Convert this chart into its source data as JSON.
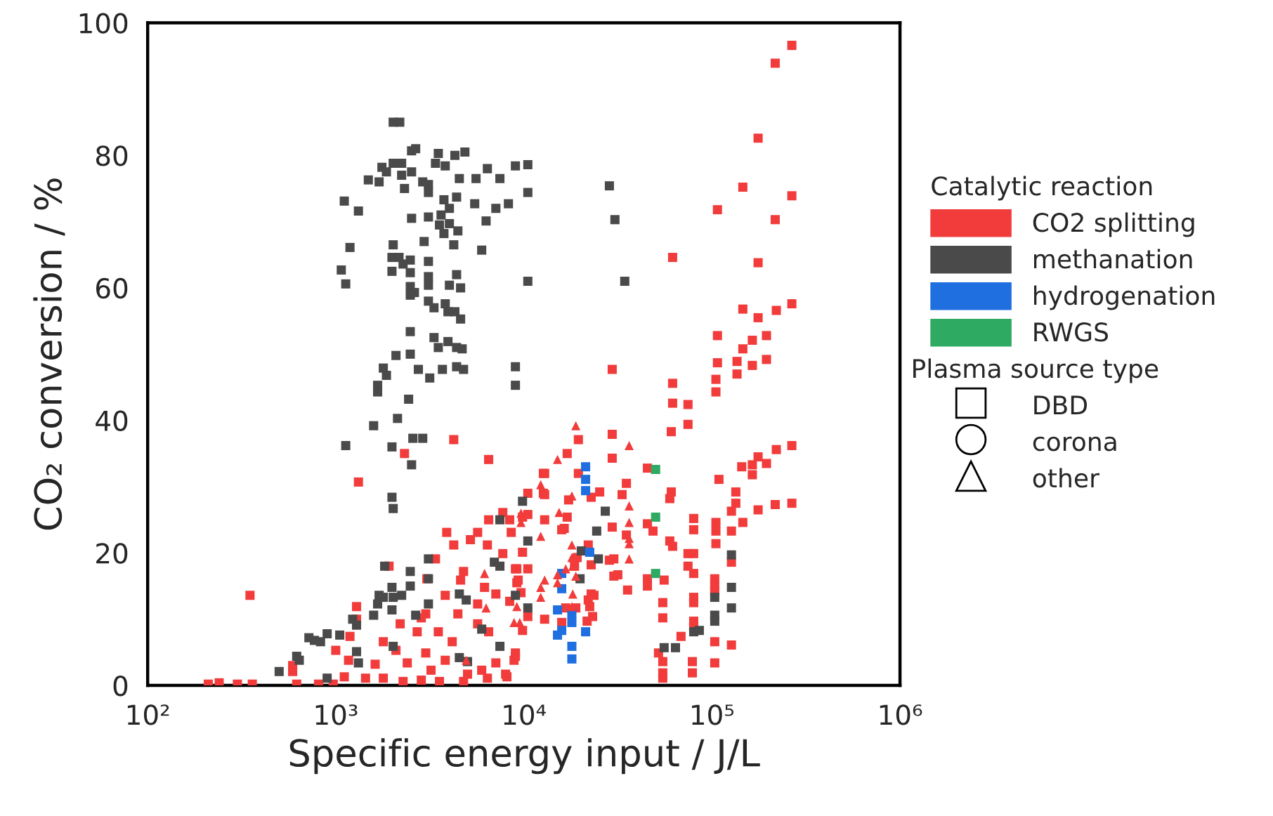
{
  "chart_data": {
    "type": "scatter",
    "xlabel": "Specific energy input / J/L",
    "ylabel": "CO₂ conversion / %",
    "legend_title": "Catalytic reaction",
    "legend": "right",
    "log": "x",
    "grid": false,
    "xlim": [
      100,
      1000000
    ],
    "xticks": [
      {
        "value": 100,
        "label": "10²"
      },
      {
        "value": 1000,
        "label": "10³"
      },
      {
        "value": 10000,
        "label": "10⁴"
      },
      {
        "value": 100000,
        "label": "10⁵"
      },
      {
        "value": 1000000,
        "label": "10⁶"
      }
    ],
    "ylim": [
      0,
      100
    ],
    "yticks": [
      0,
      20,
      40,
      60,
      80,
      100
    ],
    "annotations": [
      "Plasma source type",
      "DBD",
      "corona",
      "other"
    ],
    "series": [
      {
        "name": "CO2 splitting",
        "color": "#f23c3c",
        "marker": "square",
        "x": [
          266000,
          217000,
          176000,
          146000,
          266000,
          107000,
          217000,
          61800,
          176000,
          146000,
          176000,
          220000,
          266000,
          107000,
          164000,
          195000,
          146000,
          107000,
          136000,
          195000,
          29500,
          164000,
          105000,
          105000,
          136000,
          61800,
          61800,
          74600,
          74600,
          60800,
          29500,
          29500,
          19500,
          17000,
          12900,
          12900,
          10500,
          19500,
          22800,
          25300,
          17300,
          33300,
          35100,
          45400,
          60800,
          59700,
          109000,
          134000,
          134000,
          144000,
          164000,
          195000,
          164000,
          176000,
          220000,
          266000,
          217000,
          266000,
          176000,
          127000,
          146000,
          105000,
          105000,
          127000,
          105000,
          127000,
          80000,
          80000,
          74600,
          80000,
          74600,
          80000,
          59700,
          61800,
          45400,
          48600,
          29500,
          35100,
          45400,
          45400,
          55700,
          35600,
          30100,
          28500,
          31600,
          30100,
          22800,
          22000,
          22800,
          23600,
          22000,
          22400,
          21700,
          23200,
          54800,
          54800,
          80000,
          80000,
          80000,
          80000,
          103500,
          103500,
          103500,
          103500,
          103500,
          127000,
          78700,
          78700,
          68500,
          52000,
          54800,
          54800,
          54800,
          19200,
          18600,
          18900,
          16700,
          15900,
          12900,
          17000,
          16400,
          12900,
          10500,
          9840,
          8410,
          8570,
          9840,
          10500,
          9180,
          9330,
          9660,
          8410,
          10500,
          9840,
          9020,
          8870,
          8130,
          4240,
          2320,
          6500,
          1320,
          350,
          1920,
          1290,
          1290,
          3890,
          5680,
          6500,
          7730,
          12700,
          12700,
          15900,
          3390,
          4240,
          5200,
          6400,
          7730,
          4780,
          3050,
          4610,
          6180,
          9020,
          9180,
          7100,
          3820,
          2200,
          2850,
          3010,
          4460,
          5680,
          1190,
          1000,
          1170,
          590,
          590,
          1790,
          2090,
          2710,
          3510,
          4160,
          5680,
          6500,
          9020,
          1620,
          2400,
          3010,
          3210,
          3820,
          5020,
          5970,
          7100,
          8000,
          210,
          240,
          300,
          360,
          620,
          810,
          970,
          1110,
          1440,
          1790,
          2280,
          2850,
          3560,
          4780,
          6400
        ],
        "values": [
          96.6,
          93.9,
          82.6,
          75.2,
          73.9,
          71.8,
          70.3,
          64.6,
          63.8,
          56.8,
          55.5,
          56.6,
          57.6,
          52.8,
          52.1,
          52.8,
          50.8,
          48.7,
          48.9,
          49.2,
          47.7,
          48.3,
          46.2,
          44.3,
          47,
          45.6,
          42.6,
          42.4,
          39.4,
          38.3,
          37.9,
          34.3,
          37.1,
          35,
          32,
          28.8,
          29,
          32,
          28.4,
          29.2,
          28,
          28.8,
          30.5,
          32.8,
          29.2,
          28.2,
          31.1,
          29.2,
          27.5,
          33,
          33.3,
          33.5,
          31.8,
          34.5,
          35.6,
          36.2,
          27.3,
          27.5,
          26.5,
          26.3,
          24.6,
          24.6,
          23.3,
          23.3,
          21.4,
          18.6,
          25.2,
          23.5,
          19.9,
          19.9,
          18,
          16.9,
          21.8,
          21,
          24.4,
          23.3,
          23.9,
          22.7,
          16.1,
          15,
          15.9,
          14.4,
          19.1,
          18.9,
          16.7,
          16.5,
          18.2,
          21.2,
          13.8,
          13.6,
          12.9,
          11.9,
          9.7,
          10.4,
          12.5,
          10.2,
          13.3,
          12.5,
          9.7,
          8.9,
          16.1,
          15,
          14.2,
          6.6,
          3.4,
          6.1,
          3.6,
          1.9,
          7.4,
          4.9,
          3.6,
          1.9,
          1.1,
          19.3,
          18,
          11.7,
          11.7,
          9.5,
          10,
          25.4,
          23.7,
          25,
          25.8,
          25.4,
          25,
          23.1,
          20.1,
          17.6,
          17.6,
          15.9,
          14,
          12.7,
          10.4,
          8.3,
          4.9,
          3.8,
          1.3,
          37.1,
          35,
          34.1,
          30.7,
          13.6,
          18,
          11.9,
          10,
          23.1,
          23.1,
          25,
          26.1,
          32,
          29,
          23.5,
          19.1,
          21.2,
          22,
          21.2,
          19.9,
          17.2,
          16.1,
          15.9,
          14.8,
          17.6,
          15.5,
          13.8,
          13.6,
          9.3,
          10.2,
          10.8,
          10.8,
          12.3,
          7.4,
          5.3,
          3.8,
          3,
          2.1,
          6.6,
          5.3,
          8.1,
          8.1,
          6.6,
          9.3,
          8.1,
          4.4,
          3.2,
          3.4,
          4.9,
          2.3,
          3.8,
          1.7,
          2.3,
          3.4,
          1.7,
          0.2,
          0.4,
          0.2,
          0.2,
          0.2,
          0.2,
          0.2,
          1.3,
          1.1,
          1.1,
          0.6,
          0.8,
          0.6,
          0.6,
          1.1
        ]
      },
      {
        "name": "methanation",
        "color": "#4a4a4a",
        "marker": "square",
        "x": [
          2020,
          2190,
          2530,
          2660,
          3510,
          4300,
          4860,
          3390,
          3820,
          2020,
          2240,
          1760,
          1860,
          2530,
          2240,
          1490,
          1700,
          2900,
          3110,
          4540,
          5570,
          6400,
          7460,
          9020,
          10500,
          10500,
          2320,
          3110,
          1110,
          1320,
          3760,
          4390,
          4020,
          5480,
          7100,
          8280,
          6300,
          2530,
          3110,
          3630,
          3560,
          4020,
          3760,
          4460,
          1190,
          2950,
          4240,
          5970,
          2020,
          1990,
          2170,
          2280,
          2490,
          3110,
          1070,
          1130,
          1990,
          2490,
          3110,
          4390,
          3110,
          4020,
          4610,
          2490,
          2490,
          2620,
          3110,
          3330,
          3820,
          3950,
          4300,
          4610,
          10500,
          2490,
          3330,
          3510,
          3950,
          4390,
          4700,
          2090,
          2490,
          9020,
          9020,
          1790,
          1860,
          1670,
          1670,
          2750,
          3160,
          3690,
          4390,
          4780,
          2440,
          1590,
          2130,
          2570,
          2900,
          1130,
          1990,
          2530,
          1990,
          2020,
          9840,
          7460,
          10500,
          6970,
          7460,
          3110,
          1820,
          2490,
          3110,
          1990,
          2490,
          1700,
          1790,
          2020,
          2240,
          1670,
          1990,
          3110,
          1590,
          1230,
          1290,
          2660,
          4540,
          4940,
          10500,
          900,
          1050,
          720,
          770,
          830,
          1290,
          620,
          640,
          500,
          1320,
          900,
          5970,
          7460,
          4540,
          2020,
          5020,
          27100,
          24400,
          20200,
          24900,
          19900,
          9020,
          55700,
          64000,
          80000,
          85700,
          103500,
          103500,
          103500,
          127000,
          127000,
          127000,
          28500,
          30500,
          34400
        ],
        "values": [
          85,
          85,
          80.7,
          81,
          80.3,
          80,
          80.5,
          78.8,
          78.4,
          78.8,
          78.8,
          78.2,
          77.5,
          77.5,
          77,
          76.3,
          76,
          76,
          75.6,
          76.5,
          76.5,
          78,
          76.5,
          78.4,
          78.6,
          74.4,
          75,
          74.4,
          73.1,
          71.6,
          73.3,
          73.7,
          72,
          72.7,
          72,
          72.7,
          70.1,
          70.5,
          70.7,
          71,
          69.5,
          69.7,
          68.2,
          68.6,
          66.1,
          67,
          66.5,
          65.7,
          66.5,
          64.6,
          64.6,
          63.6,
          64.2,
          64,
          62.7,
          60.6,
          62.5,
          62.3,
          61.7,
          62,
          60.4,
          60.4,
          60,
          60.2,
          58.9,
          59.3,
          58,
          57,
          57.6,
          56.4,
          56.4,
          55.3,
          61,
          53.4,
          52.5,
          51,
          51.9,
          51,
          50.8,
          49.8,
          50,
          48.1,
          45.3,
          47.9,
          46.8,
          45.3,
          44.3,
          47.7,
          46.4,
          47.7,
          48.1,
          47.7,
          43.2,
          39.2,
          40.3,
          37.3,
          37.3,
          36.2,
          36,
          33.3,
          28.4,
          26.7,
          27.8,
          25,
          21.8,
          18.6,
          18,
          19.1,
          18,
          17.2,
          16.1,
          14.8,
          15,
          13.6,
          13.3,
          13.3,
          13.6,
          12.3,
          11.4,
          12.3,
          10.6,
          10,
          9.1,
          10.6,
          13.8,
          12.9,
          11.7,
          7.8,
          7.6,
          7.2,
          6.8,
          6.6,
          5.1,
          4.4,
          3.8,
          2.1,
          3.4,
          1.1,
          8.5,
          5.9,
          4.2,
          5.9,
          3.6,
          26.3,
          23.3,
          20.3,
          19.1,
          16.1,
          13.6,
          5.7,
          5.7,
          8.1,
          8.3,
          13.3,
          10.6,
          9.7,
          19.7,
          14.8,
          11.7,
          75.4,
          70.3,
          61
        ]
      },
      {
        "name": "hydrogenation",
        "color": "#1f6fe0",
        "marker": "square",
        "x": [
          21300,
          21300,
          21300,
          22400,
          15900,
          15900,
          15100,
          18000,
          18000,
          15100,
          15900,
          18000,
          18000,
          21300
        ],
        "values": [
          33,
          31.1,
          29.4,
          20.1,
          16.9,
          14.6,
          11.4,
          10.8,
          9.5,
          7.6,
          8.3,
          5.9,
          4,
          8.1
        ]
      },
      {
        "name": "RWGS",
        "color": "#2eaa62",
        "marker": "square",
        "x": [
          50200,
          50200,
          50200
        ],
        "values": [
          32.6,
          25.4,
          16.9
        ]
      },
      {
        "color": "#f23c3c",
        "marker": "triangle",
        "x": [
          18900,
          36300,
          15100,
          12300,
          18000,
          15400,
          36300,
          36300,
          36300,
          36300,
          12300,
          9660,
          18000,
          36300,
          18000,
          18200,
          18900,
          15100,
          16700,
          12900,
          12300,
          12300,
          18200,
          18000,
          9180,
          8870,
          9510,
          15100,
          9660,
          6180,
          6300,
          4940
        ],
        "values": [
          39.2,
          36.2,
          34.1,
          30.3,
          28.6,
          26.1,
          27.1,
          24.6,
          22.2,
          21.4,
          22.5,
          24.6,
          21.2,
          19.1,
          19.3,
          18,
          16.5,
          16.7,
          17.6,
          15.9,
          14.8,
          13.3,
          13.8,
          11.9,
          11.9,
          9.5,
          9.5,
          15.5,
          26,
          16.9,
          11.7,
          3.8
        ]
      }
    ]
  }
}
